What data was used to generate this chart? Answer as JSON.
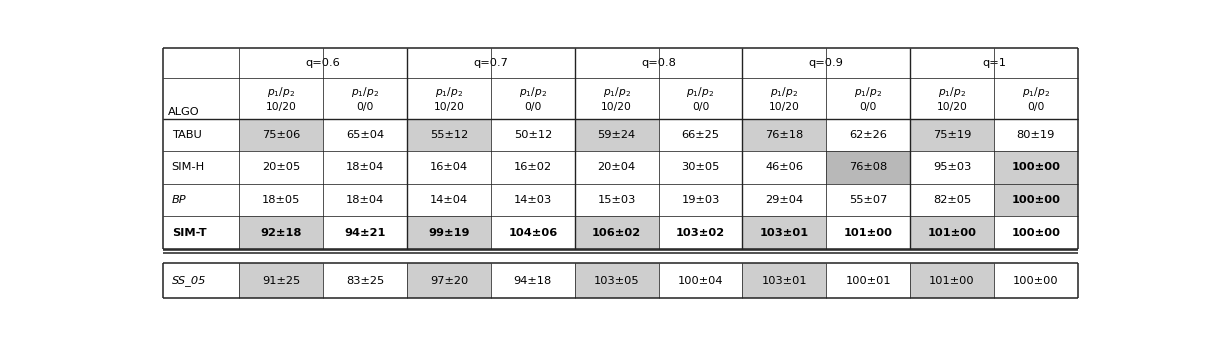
{
  "q_headers": [
    "q=0.6",
    "q=0.7",
    "q=0.8",
    "q=0.9",
    "q=1"
  ],
  "algo_col_header": "ALGO",
  "row_labels": [
    "TABU",
    "SIM-H",
    "BP",
    "SIM-T"
  ],
  "row_label_styles": [
    "normal",
    "normal",
    "italic",
    "bold"
  ],
  "ss_row_label": "SS_05",
  "data": {
    "TABU": [
      "75±06",
      "65±04",
      "55±12",
      "50±12",
      "59±24",
      "66±25",
      "76±18",
      "62±26",
      "75±19",
      "80±19"
    ],
    "SIM-H": [
      "20±05",
      "18±04",
      "16±04",
      "16±02",
      "20±04",
      "30±05",
      "46±06",
      "76±08",
      "95±03",
      "100±00"
    ],
    "BP": [
      "18±05",
      "18±04",
      "14±04",
      "14±03",
      "15±03",
      "19±03",
      "29±04",
      "55±07",
      "82±05",
      "100±00"
    ],
    "SIM-T": [
      "92±18",
      "94±21",
      "99±19",
      "104±06",
      "106±02",
      "103±02",
      "103±01",
      "101±00",
      "101±00",
      "100±00"
    ],
    "SS_05": [
      "91±25",
      "83±25",
      "97±20",
      "94±18",
      "103±05",
      "100±04",
      "103±01",
      "100±01",
      "101±00",
      "100±00"
    ]
  },
  "bold_cells": {
    "TABU": [
      false,
      false,
      false,
      false,
      false,
      false,
      false,
      false,
      false,
      false
    ],
    "SIM-H": [
      false,
      false,
      false,
      false,
      false,
      false,
      false,
      false,
      false,
      true
    ],
    "BP": [
      false,
      false,
      false,
      false,
      false,
      false,
      false,
      false,
      false,
      true
    ],
    "SIM-T": [
      true,
      true,
      true,
      true,
      true,
      true,
      true,
      true,
      true,
      true
    ],
    "SS_05": [
      false,
      false,
      false,
      false,
      false,
      false,
      false,
      false,
      false,
      false
    ]
  },
  "highlight_gray": {
    "TABU": [
      true,
      false,
      true,
      false,
      true,
      false,
      true,
      false,
      true,
      false
    ],
    "SIM-H": [
      false,
      false,
      false,
      false,
      false,
      false,
      false,
      true,
      false,
      true
    ],
    "BP": [
      false,
      false,
      false,
      false,
      false,
      false,
      false,
      false,
      false,
      true
    ],
    "SIM-T": [
      true,
      false,
      true,
      false,
      true,
      false,
      true,
      false,
      true,
      false
    ],
    "SS_05": [
      true,
      false,
      true,
      false,
      true,
      false,
      true,
      false,
      true,
      false
    ]
  },
  "simh_dark_cell": 7,
  "gray_color": "#cecece",
  "dark_gray_color": "#b8b8b8",
  "bg_color": "#ffffff",
  "text_color": "#000000",
  "fontsize": 8.2
}
